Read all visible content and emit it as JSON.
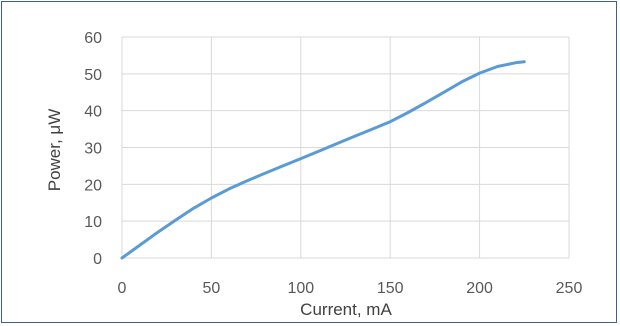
{
  "chart_data": {
    "type": "line",
    "title": "",
    "xlabel": "Current, mA",
    "ylabel": "Power, μW",
    "xlim": [
      0,
      250
    ],
    "ylim": [
      0,
      60
    ],
    "x_ticks": [
      0,
      50,
      100,
      150,
      200,
      250
    ],
    "y_ticks": [
      0,
      10,
      20,
      30,
      40,
      50,
      60
    ],
    "grid": true,
    "legend": "none",
    "series": [
      {
        "color": "#5b9bd5",
        "x": [
          0,
          10,
          20,
          30,
          40,
          50,
          60,
          70,
          80,
          90,
          100,
          110,
          120,
          130,
          140,
          150,
          160,
          170,
          180,
          190,
          200,
          210,
          220,
          225
        ],
        "y": [
          0,
          3.5,
          7,
          10.3,
          13.5,
          16.3,
          18.8,
          21,
          23,
          25,
          27,
          29,
          31,
          33,
          35,
          37,
          39.5,
          42.2,
          45,
          47.8,
          50.2,
          52,
          53,
          53.3
        ]
      }
    ]
  }
}
